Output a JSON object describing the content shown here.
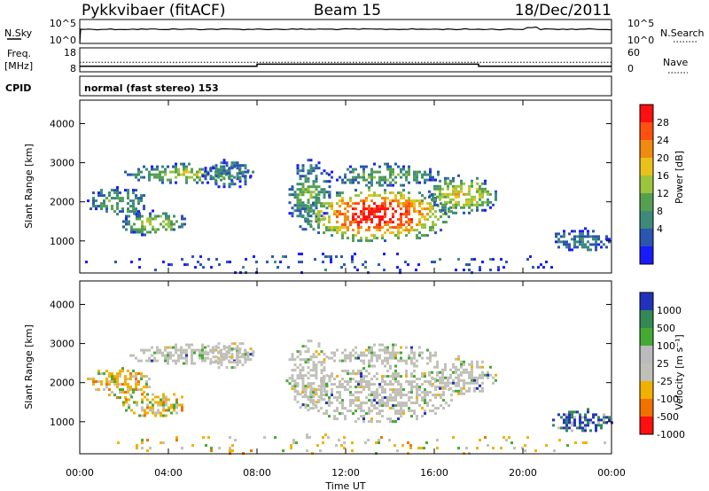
{
  "header": {
    "radar": "Pykkvibaer (fitACF)",
    "beam": "Beam 15",
    "date": "18/Dec/2011"
  },
  "strip_nsky": {
    "label": "N.Sky",
    "left_ticks": [
      "10^5",
      "10^0"
    ],
    "right_ticks": [
      "10^5",
      "10^0"
    ],
    "right_label": "N.Search"
  },
  "strip_freq": {
    "label_line1": "Freq.",
    "label_line2": "[MHz]",
    "left_ticks": [
      "18",
      "8"
    ],
    "right_ticks": [
      "60",
      "0"
    ],
    "right_label": "Nave",
    "freq_segments": [
      {
        "t0": 0.0,
        "t1": 8.0,
        "mhz": 10.3
      },
      {
        "t0": 8.0,
        "t1": 18.0,
        "mhz": 11.2
      },
      {
        "t0": 18.0,
        "t1": 24.0,
        "mhz": 10.3
      }
    ],
    "dotted_level_mhz": 12.0
  },
  "cpid": {
    "label": "CPID",
    "text": "normal (fast stereo) 153"
  },
  "x_axis": {
    "label": "Time UT",
    "ticks": [
      "00:00",
      "04:00",
      "08:00",
      "12:00",
      "16:00",
      "20:00",
      "00:00"
    ]
  },
  "chart_data": [
    {
      "type": "heatmap",
      "name": "power",
      "ylabel": "Slant Range [km]",
      "yticks": [
        "4000",
        "3000",
        "2000",
        "1000"
      ],
      "colorbar_label": "Power [dB]",
      "colorbar_ticks": [
        "28",
        "24",
        "20",
        "16",
        "12",
        "8",
        "4"
      ],
      "colors": [
        "#1a1aff",
        "#2a55b0",
        "#3d8a7a",
        "#55a050",
        "#9cc43c",
        "#e8c21a",
        "#f08a10",
        "#ff5010",
        "#ff1010"
      ],
      "xlim": [
        0,
        24
      ],
      "ylim": [
        180,
        4600
      ],
      "regions": [
        {
          "t0": 0.2,
          "t1": 3.2,
          "r0": 1650,
          "r1": 2400,
          "peak": 3
        },
        {
          "t0": 1.8,
          "t1": 4.8,
          "r0": 1150,
          "r1": 1800,
          "peak": 4
        },
        {
          "t0": 2.0,
          "t1": 7.8,
          "r0": 2500,
          "r1": 3000,
          "peak": 4
        },
        {
          "t0": 5.5,
          "t1": 7.9,
          "r0": 2400,
          "r1": 3100,
          "peak": 2
        },
        {
          "t0": 9.3,
          "t1": 11.3,
          "r0": 1300,
          "r1": 3100,
          "peak": 3
        },
        {
          "t0": 10.0,
          "t1": 16.8,
          "r0": 1000,
          "r1": 2400,
          "peak": 8
        },
        {
          "t0": 11.2,
          "t1": 16.2,
          "r0": 2400,
          "r1": 3000,
          "peak": 3
        },
        {
          "t0": 15.6,
          "t1": 18.8,
          "r0": 1700,
          "r1": 2700,
          "peak": 5
        },
        {
          "t0": 21.2,
          "t1": 24.0,
          "r0": 750,
          "r1": 1350,
          "peak": 2
        },
        {
          "t0": 0.0,
          "t1": 24.0,
          "r0": 200,
          "r1": 700,
          "peak": 1
        }
      ]
    },
    {
      "type": "heatmap",
      "name": "velocity",
      "ylabel": "Slant Range [km]",
      "yticks": [
        "4000",
        "3000",
        "2000",
        "1000"
      ],
      "colorbar_label": "Velocity [m s⁻¹]",
      "colorbar_ticks": [
        "1000",
        "500",
        "100",
        "25",
        "-25",
        "-100",
        "-500",
        "-1000"
      ],
      "colors": [
        "#2233bb",
        "#338855",
        "#44aa33",
        "#bbbbbb",
        "#c0c0b8",
        "#f0b000",
        "#f07000",
        "#ff1010"
      ],
      "xlim": [
        0,
        24
      ],
      "ylim": [
        180,
        4600
      ],
      "regions": [
        {
          "t0": 0.2,
          "t1": 3.2,
          "r0": 1650,
          "r1": 2400,
          "palette": "orange"
        },
        {
          "t0": 1.8,
          "t1": 4.8,
          "r0": 1150,
          "r1": 1800,
          "palette": "orange"
        },
        {
          "t0": 2.0,
          "t1": 7.8,
          "r0": 2500,
          "r1": 3000,
          "palette": "gray"
        },
        {
          "t0": 5.5,
          "t1": 7.9,
          "r0": 2400,
          "r1": 3100,
          "palette": "gray"
        },
        {
          "t0": 9.3,
          "t1": 11.3,
          "r0": 1300,
          "r1": 3100,
          "palette": "gray"
        },
        {
          "t0": 10.0,
          "t1": 16.8,
          "r0": 1000,
          "r1": 2400,
          "palette": "gray"
        },
        {
          "t0": 11.2,
          "t1": 16.2,
          "r0": 2400,
          "r1": 3000,
          "palette": "gray"
        },
        {
          "t0": 15.6,
          "t1": 18.8,
          "r0": 1700,
          "r1": 2700,
          "palette": "gray"
        },
        {
          "t0": 21.2,
          "t1": 24.0,
          "r0": 750,
          "r1": 1350,
          "palette": "blue"
        },
        {
          "t0": 0.0,
          "t1": 24.0,
          "r0": 200,
          "r1": 700,
          "palette": "orange"
        }
      ]
    }
  ]
}
